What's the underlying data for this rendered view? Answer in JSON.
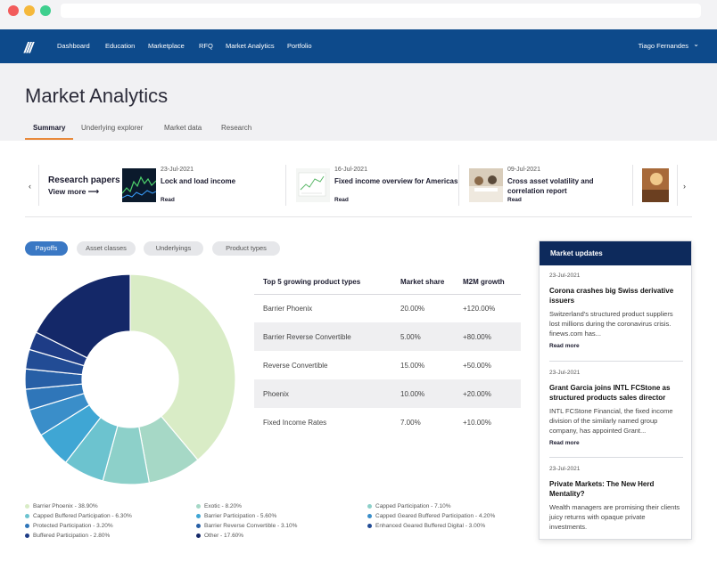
{
  "nav": {
    "logo": "///",
    "items": [
      "Dashboard",
      "Education",
      "Marketplace",
      "RFQ",
      "Market Analytics",
      "Portfolio"
    ],
    "user": "Tiago Fernandes"
  },
  "page": {
    "title": "Market Analytics",
    "tabs": [
      "Summary",
      "Underlying explorer",
      "Market data",
      "Research"
    ]
  },
  "research": {
    "heading": "Research papers",
    "view_more": "View more",
    "cards": [
      {
        "date": "23-Jul-2021",
        "title": "Lock and load income",
        "read": "Read"
      },
      {
        "date": "16-Jul-2021",
        "title": "Fixed income overview for Americas",
        "read": "Read"
      },
      {
        "date": "09-Jul-2021",
        "title": "Cross asset volatility and correlation report",
        "read": "Read"
      }
    ]
  },
  "filters": [
    "Payoffs",
    "Asset classes",
    "Underlyings",
    "Product types"
  ],
  "table": {
    "headers": [
      "Top 5 growing product types",
      "Market share",
      "M2M growth"
    ],
    "rows": [
      {
        "name": "Barrier Phoenix",
        "share": "20.00%",
        "growth": "+120.00%"
      },
      {
        "name": "Barrier Reverse Convertible",
        "share": "5.00%",
        "growth": "+80.00%"
      },
      {
        "name": "Reverse Convertible",
        "share": "15.00%",
        "growth": "+50.00%"
      },
      {
        "name": "Phoenix",
        "share": "10.00%",
        "growth": "+20.00%"
      },
      {
        "name": "Fixed Income Rates",
        "share": "7.00%",
        "growth": "+10.00%"
      }
    ]
  },
  "legend": [
    "Barrier Phoenix - 38.90%",
    "Capped Buffered Participation - 6.30%",
    "Protected Participation - 3.20%",
    "Buffered Participation - 2.80%",
    "Exotic - 8.20%",
    "Barrier Participation - 5.60%",
    "Barrier Reverse Convertible - 3.10%",
    "Other - 17.60%",
    "Capped Participation - 7.10%",
    "Capped Geared Buffered Participation - 4.20%",
    "Enhanced Geared Buffered Digital - 3.00%"
  ],
  "chart_data": {
    "type": "pie",
    "categories": [
      "Barrier Phoenix",
      "Exotic",
      "Capped Participation",
      "Capped Buffered Participation",
      "Barrier Participation",
      "Capped Geared Buffered Participation",
      "Protected Participation",
      "Barrier Reverse Convertible",
      "Enhanced Geared Buffered Digital",
      "Buffered Participation",
      "Other"
    ],
    "values": [
      38.9,
      8.2,
      7.1,
      6.3,
      5.6,
      4.2,
      3.2,
      3.1,
      3.0,
      2.8,
      17.6
    ],
    "colors": [
      "#d9ecc6",
      "#a6d8c6",
      "#8dd0c9",
      "#6cc3cf",
      "#3fa6d4",
      "#3a8ec9",
      "#2f76b9",
      "#275fa6",
      "#224c95",
      "#1e3c86",
      "#142868"
    ]
  },
  "market_updates": {
    "heading": "Market updates",
    "items": [
      {
        "date": "23-Jul-2021",
        "title": "Corona crashes big Swiss derivative issuers",
        "body": "Switzerland's structured product suppliers lost millions during the coronavirus crisis. finews.com has...",
        "more": "Read more"
      },
      {
        "date": "23-Jul-2021",
        "title": "Grant Garcia joins INTL FCStone as structured products sales director",
        "body": "INTL FCStone Financial, the fixed income division of the similarly named group company, has appointed Grant...",
        "more": "Read more"
      },
      {
        "date": "23-Jul-2021",
        "title": "Private Markets: The New Herd Mentality?",
        "body": "Wealth managers are promising their clients juicy returns with opaque private investments.",
        "more": ""
      }
    ]
  }
}
